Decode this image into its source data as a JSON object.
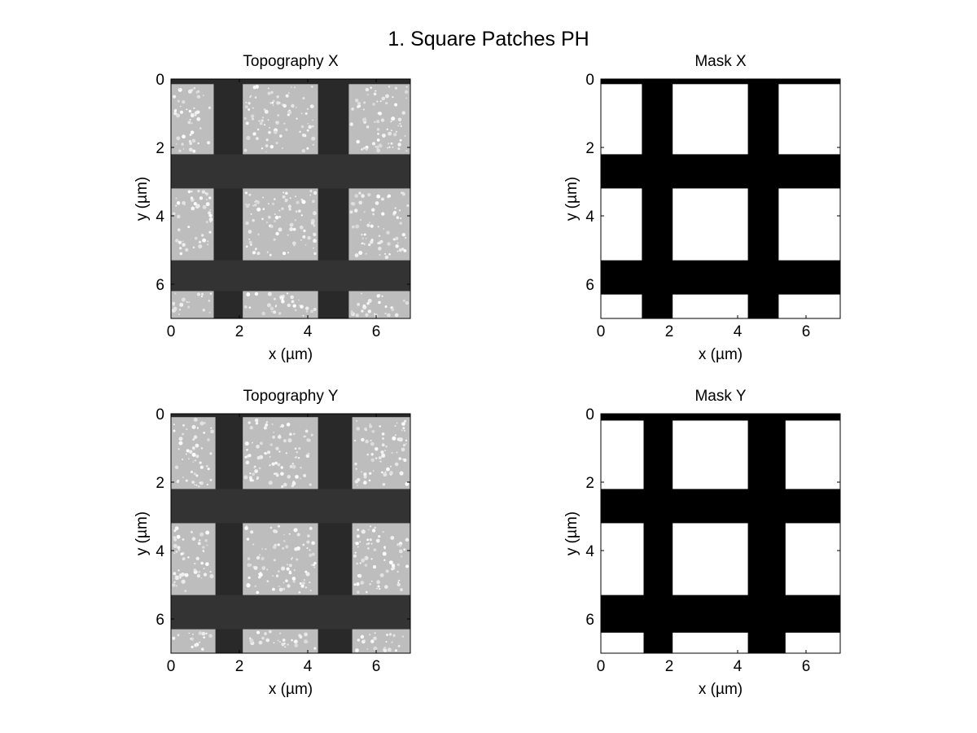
{
  "figure": {
    "title": "1. Square Patches PH"
  },
  "colors": {
    "background": "#ffffff",
    "foreground": "#000000"
  },
  "chart_data": [
    {
      "type": "heatmap",
      "title": "Topography X",
      "colormap": "gray",
      "xlabel": "x (µm)",
      "ylabel": "y (µm)",
      "xlim": [
        0,
        7
      ],
      "ylim": [
        0,
        7
      ],
      "y_direction": "reversed",
      "xticks": [
        "0",
        "2",
        "4",
        "6"
      ],
      "yticks": [
        "0",
        "2",
        "4",
        "6"
      ],
      "grid": false,
      "columns_um": [
        [
          0.0,
          1.25
        ],
        [
          2.1,
          4.3
        ],
        [
          5.2,
          7.0
        ]
      ],
      "rows_um": [
        [
          0.15,
          2.2
        ],
        [
          3.2,
          5.3
        ],
        [
          6.2,
          7.0
        ]
      ],
      "trench_level": 0.16,
      "patch_level": 0.74
    },
    {
      "type": "heatmap",
      "title": "Mask X",
      "colormap": "binary",
      "xlabel": "x (µm)",
      "ylabel": "y (µm)",
      "xlim": [
        0,
        7
      ],
      "ylim": [
        0,
        7
      ],
      "y_direction": "reversed",
      "xticks": [
        "0",
        "2",
        "4",
        "6"
      ],
      "yticks": [
        "0",
        "2",
        "4",
        "6"
      ],
      "grid": false,
      "columns_um": [
        [
          0.0,
          1.2
        ],
        [
          2.1,
          4.3
        ],
        [
          5.2,
          7.0
        ]
      ],
      "rows_um": [
        [
          0.15,
          2.2
        ],
        [
          3.2,
          5.3
        ],
        [
          6.3,
          7.0
        ]
      ],
      "trench_level": 0.0,
      "patch_level": 1.0
    },
    {
      "type": "heatmap",
      "title": "Topography Y",
      "colormap": "gray",
      "xlabel": "x (µm)",
      "ylabel": "y (µm)",
      "xlim": [
        0,
        7
      ],
      "ylim": [
        0,
        7
      ],
      "y_direction": "reversed",
      "xticks": [
        "0",
        "2",
        "4",
        "6"
      ],
      "yticks": [
        "0",
        "2",
        "4",
        "6"
      ],
      "grid": false,
      "columns_um": [
        [
          0.0,
          1.3
        ],
        [
          2.1,
          4.3
        ],
        [
          5.3,
          7.0
        ]
      ],
      "rows_um": [
        [
          0.1,
          2.2
        ],
        [
          3.2,
          5.3
        ],
        [
          6.3,
          7.0
        ]
      ],
      "trench_level": 0.16,
      "patch_level": 0.74
    },
    {
      "type": "heatmap",
      "title": "Mask Y",
      "colormap": "binary",
      "xlabel": "x (µm)",
      "ylabel": "y (µm)",
      "xlim": [
        0,
        7
      ],
      "ylim": [
        0,
        7
      ],
      "y_direction": "reversed",
      "xticks": [
        "0",
        "2",
        "4",
        "6"
      ],
      "yticks": [
        "0",
        "2",
        "4",
        "6"
      ],
      "grid": false,
      "columns_um": [
        [
          0.0,
          1.25
        ],
        [
          2.1,
          4.3
        ],
        [
          5.4,
          7.0
        ]
      ],
      "rows_um": [
        [
          0.2,
          2.2
        ],
        [
          3.2,
          5.3
        ],
        [
          6.4,
          7.0
        ]
      ],
      "trench_level": 0.0,
      "patch_level": 1.0
    }
  ]
}
